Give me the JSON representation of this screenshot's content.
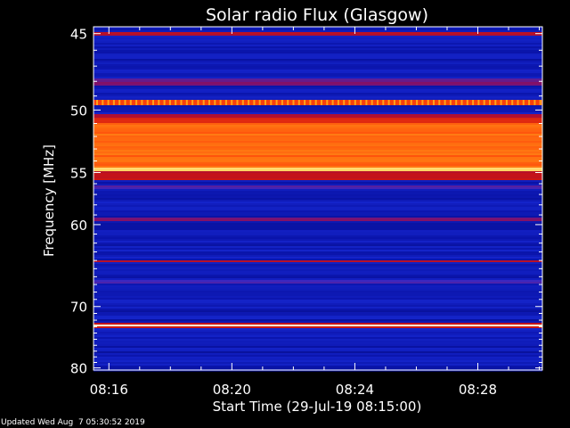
{
  "chart_data": {
    "type": "heatmap",
    "title": "Solar radio Flux (Glasgow)",
    "xlabel": "Start Time (29-Jul-19 08:15:00)",
    "ylabel": "Frequency [MHz]",
    "x_tick_labels": [
      "08:16",
      "08:20",
      "08:24",
      "08:28"
    ],
    "x_tick_values_min": [
      1,
      5,
      9,
      13
    ],
    "x_range_min": [
      0.5,
      15.1
    ],
    "y_tick_values": [
      45,
      50,
      55,
      60,
      70,
      80
    ],
    "y_range_mhz": [
      44.6,
      80.4
    ],
    "y_scale": "reciprocal",
    "colormap": "blue-red-yellow-white",
    "background_level": 0.18,
    "emission_bands": [
      {
        "from_mhz": 44.9,
        "to_mhz": 45.1,
        "level": 0.55
      },
      {
        "from_mhz": 47.8,
        "to_mhz": 48.3,
        "level": 0.4
      },
      {
        "from_mhz": 49.3,
        "to_mhz": 49.7,
        "level": 0.72,
        "pulsed": true
      },
      {
        "from_mhz": 50.3,
        "to_mhz": 50.6,
        "level": 0.55
      },
      {
        "from_mhz": 50.6,
        "to_mhz": 51.0,
        "level": 0.68
      },
      {
        "from_mhz": 51.0,
        "to_mhz": 54.6,
        "level": 0.78
      },
      {
        "from_mhz": 54.6,
        "to_mhz": 54.9,
        "level": 0.9
      },
      {
        "from_mhz": 54.9,
        "to_mhz": 55.6,
        "level": 0.58
      },
      {
        "from_mhz": 56.1,
        "to_mhz": 56.5,
        "level": 0.36
      },
      {
        "from_mhz": 59.2,
        "to_mhz": 59.6,
        "level": 0.42
      },
      {
        "from_mhz": 63.9,
        "to_mhz": 64.3,
        "level": 0.56
      },
      {
        "from_mhz": 66.4,
        "to_mhz": 66.8,
        "level": 0.36
      },
      {
        "from_mhz": 72.6,
        "to_mhz": 72.9,
        "level": 1.0
      },
      {
        "from_mhz": 72.4,
        "to_mhz": 72.6,
        "level": 0.6
      },
      {
        "from_mhz": 72.9,
        "to_mhz": 73.1,
        "level": 0.6
      }
    ]
  },
  "footer": "Updated Wed Aug  7 05:30:52 2019"
}
